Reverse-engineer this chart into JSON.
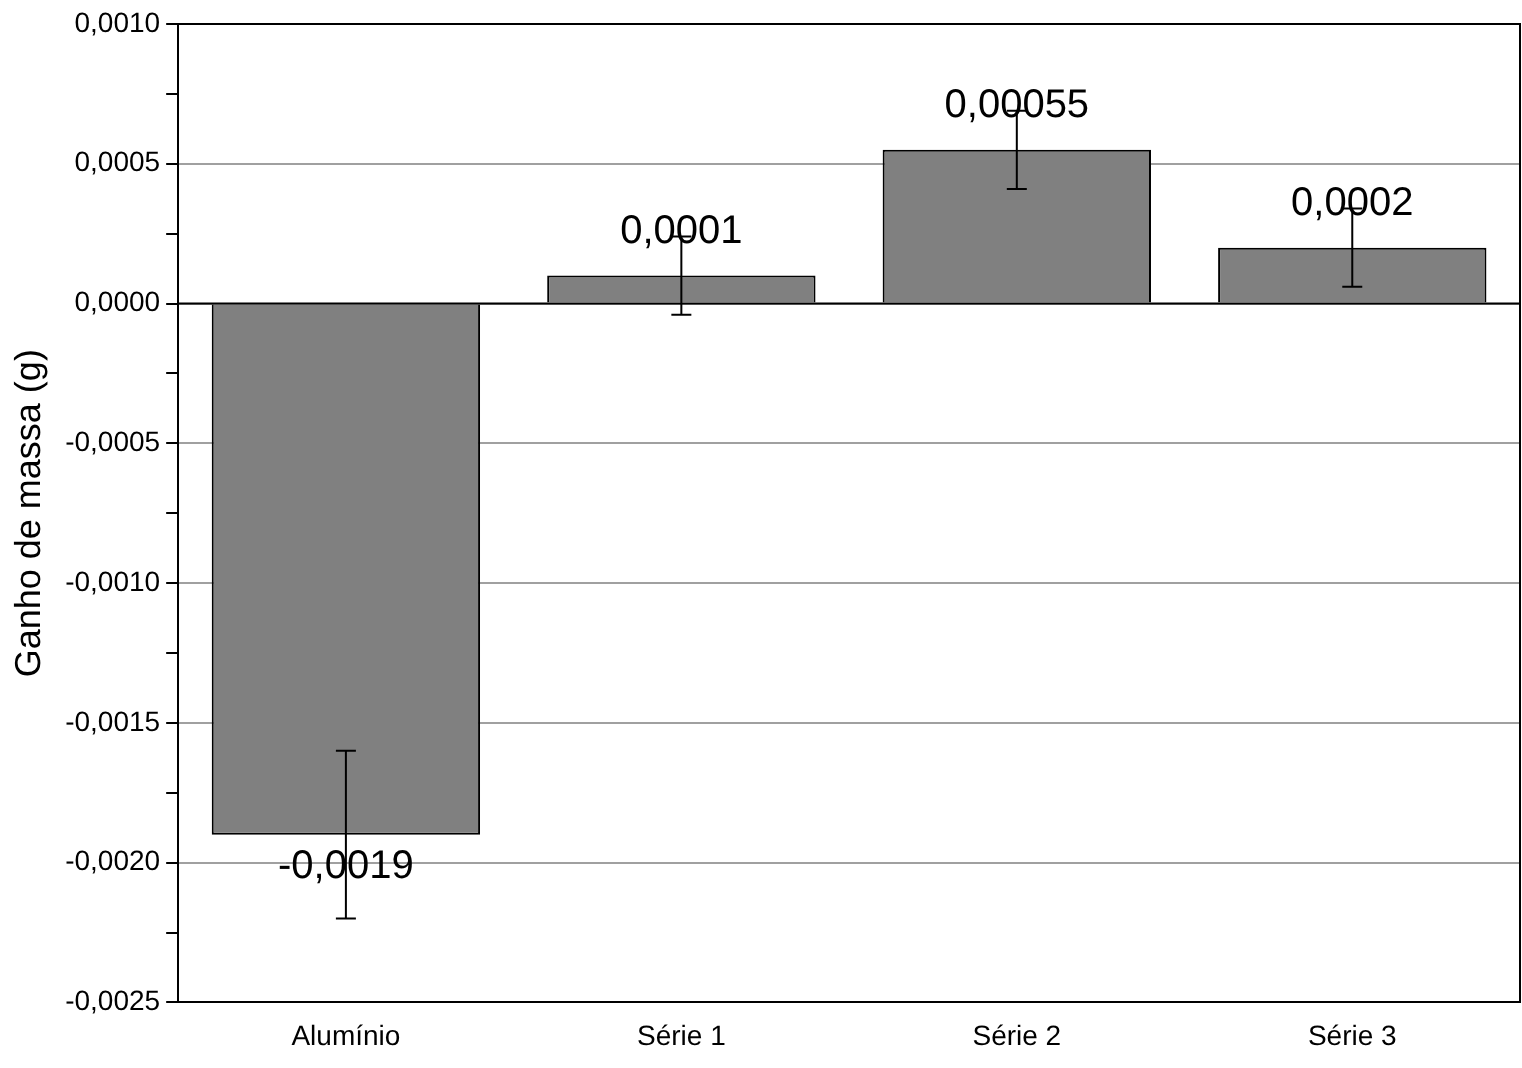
{
  "chart_data": {
    "type": "bar",
    "ylabel": "Ganho de massa (g)",
    "categories": [
      "Alumínio",
      "Série 1",
      "Série 2",
      "Série 3"
    ],
    "values": [
      -0.0019,
      0.0001,
      0.00055,
      0.0002
    ],
    "errors": [
      0.0003,
      0.00014,
      0.00014,
      0.00014
    ],
    "value_labels": [
      "-0,0019",
      "0,0001",
      "0,00055",
      "0,0002"
    ],
    "color": "#808080",
    "ylim": [
      -0.0025,
      0.001
    ],
    "yticks": [
      {
        "value": -0.0025,
        "label": "-0,0025"
      },
      {
        "value": -0.00225,
        "label": null
      },
      {
        "value": -0.002,
        "label": "-0,0020"
      },
      {
        "value": -0.00175,
        "label": null
      },
      {
        "value": -0.0015,
        "label": "-0,0015"
      },
      {
        "value": -0.00125,
        "label": null
      },
      {
        "value": -0.001,
        "label": "-0,0010"
      },
      {
        "value": -0.00075,
        "label": null
      },
      {
        "value": -0.0005,
        "label": "-0,0005"
      },
      {
        "value": -0.00025,
        "label": null
      },
      {
        "value": 0,
        "label": "0,0000"
      },
      {
        "value": 0.00025,
        "label": null
      },
      {
        "value": 0.0005,
        "label": "0,0005"
      },
      {
        "value": 0.00075,
        "label": null
      },
      {
        "value": 0.001,
        "label": "0,0010"
      }
    ],
    "grid": "y"
  }
}
